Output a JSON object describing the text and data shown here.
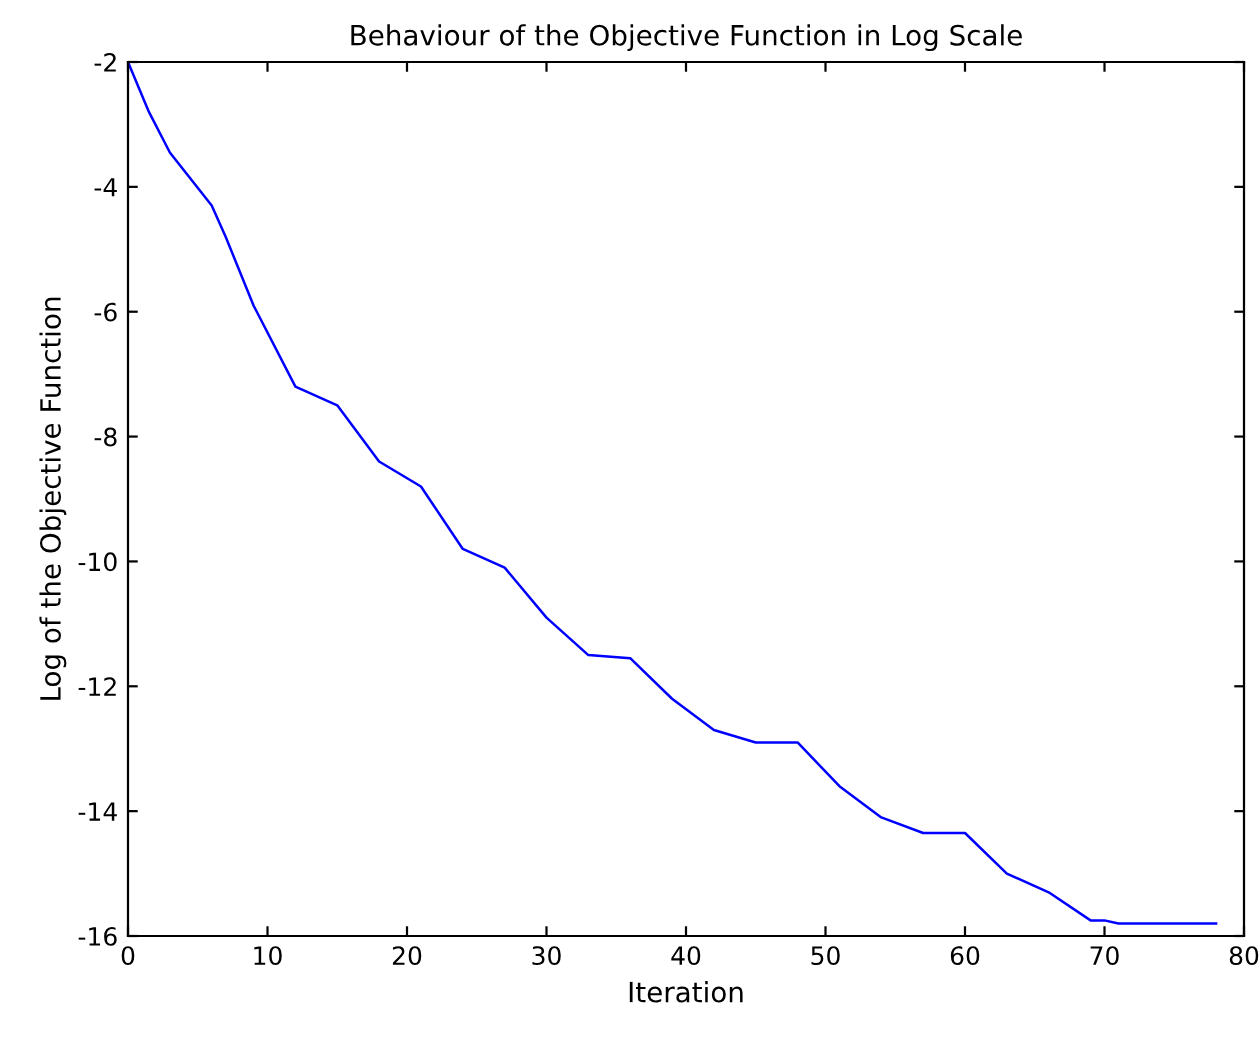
{
  "chart_data": {
    "type": "line",
    "title": "Behaviour of the Objective Function in Log Scale",
    "xlabel": "Iteration",
    "ylabel": "Log of the Objective Function",
    "series": [
      {
        "color": "#0000ff",
        "x": [
          0,
          1.5,
          3,
          6,
          7,
          9,
          12,
          15,
          18,
          21,
          24,
          27,
          30,
          33,
          36,
          39,
          42,
          45,
          48,
          51,
          54,
          57,
          60,
          63,
          66,
          69,
          70,
          71,
          78
        ],
        "values": [
          -2,
          -2.8,
          -3.45,
          -4.3,
          -4.8,
          -5.9,
          -7.2,
          -7.5,
          -8.4,
          -8.8,
          -9.8,
          -10.1,
          -10.9,
          -11.5,
          -11.55,
          -12.2,
          -12.7,
          -12.9,
          -12.9,
          -13.6,
          -14.1,
          -14.35,
          -14.35,
          -15.0,
          -15.3,
          -15.75,
          -15.75,
          -15.8,
          -15.8
        ]
      }
    ],
    "xlim": [
      0,
      80
    ],
    "ylim": [
      -16,
      -2
    ],
    "xticks": [
      0,
      10,
      20,
      30,
      40,
      50,
      60,
      70,
      80
    ],
    "yticks": [
      -16,
      -14,
      -12,
      -10,
      -8,
      -6,
      -4,
      -2
    ],
    "grid": false,
    "legend": false
  }
}
